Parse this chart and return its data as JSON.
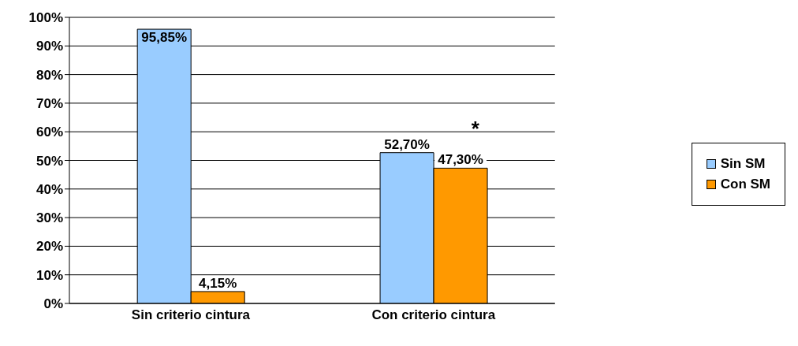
{
  "chart_data": {
    "type": "bar",
    "categories": [
      "Sin criterio cintura",
      "Con criterio cintura"
    ],
    "series": [
      {
        "name": "Sin SM",
        "color": "#99ccff",
        "values": [
          95.85,
          52.7
        ],
        "value_labels": [
          "95,85%",
          "52,70%"
        ]
      },
      {
        "name": "Con SM",
        "color": "#ff9900",
        "values": [
          4.15,
          47.3
        ],
        "value_labels": [
          "4,15%",
          "47,30%"
        ]
      }
    ],
    "ylim": [
      0,
      100
    ],
    "yticks": [
      {
        "value": 0,
        "label": "0%"
      },
      {
        "value": 10,
        "label": "10%"
      },
      {
        "value": 20,
        "label": "20%"
      },
      {
        "value": 30,
        "label": "30%"
      },
      {
        "value": 40,
        "label": "40%"
      },
      {
        "value": 50,
        "label": "50%"
      },
      {
        "value": 60,
        "label": "60%"
      },
      {
        "value": 70,
        "label": "70%"
      },
      {
        "value": 80,
        "label": "80%"
      },
      {
        "value": 90,
        "label": "90%"
      },
      {
        "value": 100,
        "label": "100%"
      }
    ],
    "annotations": [
      {
        "text": "*",
        "x": "Con criterio cintura",
        "y": 52.7
      }
    ],
    "grid": "y",
    "legend": "right"
  }
}
